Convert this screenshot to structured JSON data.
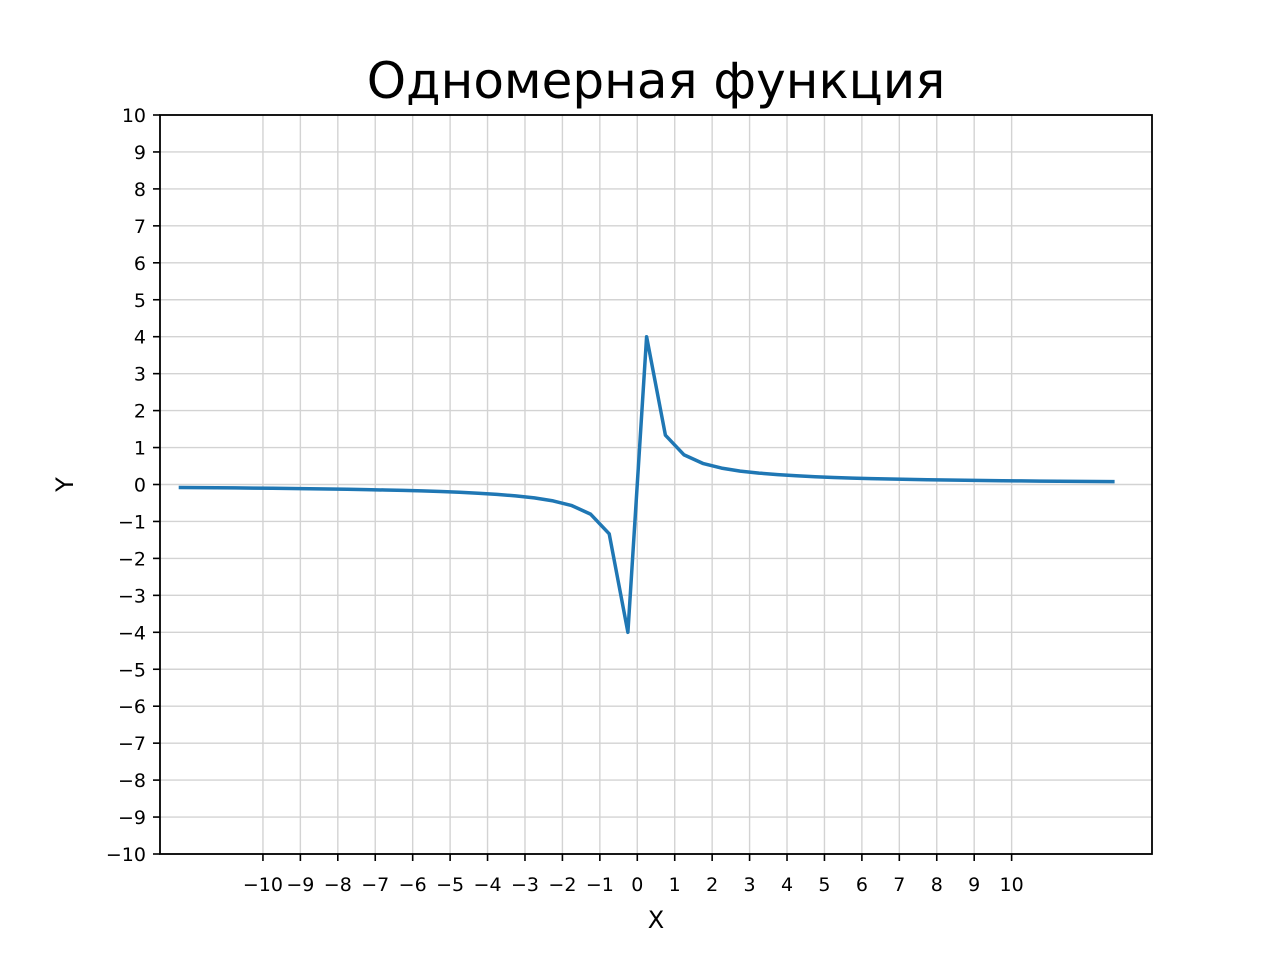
{
  "chart_data": {
    "type": "line",
    "title": "Одномерная функция",
    "xlabel": "X",
    "ylabel": "Y",
    "xlim": [
      -12.75,
      13.75
    ],
    "ylim": [
      -10,
      10
    ],
    "x_ticks": [
      -10,
      -9,
      -8,
      -7,
      -6,
      -5,
      -4,
      -3,
      -2,
      -1,
      0,
      1,
      2,
      3,
      4,
      5,
      6,
      7,
      8,
      9,
      10
    ],
    "y_ticks": [
      -10,
      -9,
      -8,
      -7,
      -6,
      -5,
      -4,
      -3,
      -2,
      -1,
      0,
      1,
      2,
      3,
      4,
      5,
      6,
      7,
      8,
      9,
      10
    ],
    "grid": true,
    "series": [
      {
        "color": "#1f77b4",
        "x": [
          -12.25,
          -11.75,
          -11.25,
          -10.75,
          -10.25,
          -9.75,
          -9.25,
          -8.75,
          -8.25,
          -7.75,
          -7.25,
          -6.75,
          -6.25,
          -5.75,
          -5.25,
          -4.75,
          -4.25,
          -3.75,
          -3.25,
          -2.75,
          -2.25,
          -1.75,
          -1.25,
          -0.75,
          -0.25,
          0.25,
          0.75,
          1.25,
          1.75,
          2.25,
          2.75,
          3.25,
          3.75,
          4.25,
          4.75,
          5.25,
          5.75,
          6.25,
          6.75,
          7.25,
          7.75,
          8.25,
          8.75,
          9.25,
          9.75,
          10.25,
          10.75,
          11.25,
          11.75,
          12.25,
          12.75
        ],
        "y": [
          -0.082,
          -0.085,
          -0.089,
          -0.093,
          -0.098,
          -0.103,
          -0.108,
          -0.114,
          -0.121,
          -0.129,
          -0.138,
          -0.148,
          -0.16,
          -0.174,
          -0.19,
          -0.211,
          -0.235,
          -0.267,
          -0.308,
          -0.364,
          -0.444,
          -0.571,
          -0.8,
          -1.333,
          -4.0,
          4.0,
          1.333,
          0.8,
          0.571,
          0.444,
          0.364,
          0.308,
          0.267,
          0.235,
          0.211,
          0.19,
          0.174,
          0.16,
          0.148,
          0.138,
          0.129,
          0.121,
          0.114,
          0.108,
          0.103,
          0.098,
          0.093,
          0.089,
          0.085,
          0.082,
          0.078
        ]
      }
    ]
  }
}
